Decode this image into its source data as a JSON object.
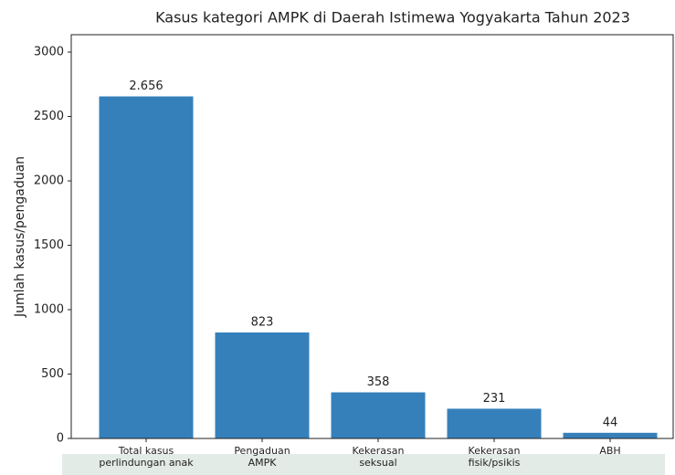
{
  "chart_data": {
    "type": "bar",
    "title": "Kasus kategori AMPK di Daerah Istimewa Yogyakarta Tahun 2023",
    "y_label": "Jumlah kasus/pengaduan",
    "categories": [
      [
        "Total kasus",
        "perlindungan anak"
      ],
      [
        "Pengaduan",
        "AMPK"
      ],
      [
        "Kekerasan",
        "seksual"
      ],
      [
        "Kekerasan",
        "fisik/psikis"
      ],
      [
        "ABH"
      ]
    ],
    "values": [
      2656,
      823,
      358,
      231,
      44
    ],
    "value_labels": [
      "2.656",
      "823",
      "358",
      "231",
      "44"
    ],
    "color": "#3580bb",
    "ylim": [
      0,
      3135
    ],
    "yticks": [
      0,
      500,
      1000,
      1500,
      2000,
      2500,
      3000
    ],
    "grid": false
  }
}
